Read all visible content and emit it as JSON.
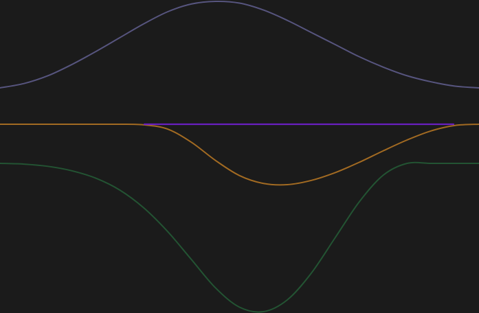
{
  "chart_data": {
    "type": "line",
    "title": "",
    "xlabel": "",
    "ylabel": "",
    "grid": false,
    "legend": "none",
    "background": "#1b1b1b",
    "x": [
      0,
      0.05,
      0.1,
      0.15,
      0.2,
      0.25,
      0.3,
      0.35,
      0.4,
      0.45,
      0.5,
      0.55,
      0.6,
      0.65,
      0.7,
      0.75,
      0.8,
      0.85,
      0.9,
      0.95,
      1.0
    ],
    "series": [
      {
        "color": "#57557f",
        "values": [
          0.0,
          0.05,
          0.14,
          0.27,
          0.42,
          0.58,
          0.74,
          0.88,
          0.97,
          1.0,
          0.98,
          0.9,
          0.78,
          0.64,
          0.5,
          0.36,
          0.24,
          0.14,
          0.07,
          0.02,
          0.0
        ]
      },
      {
        "color": "#6a1fc0",
        "values": [
          0.0,
          0.0,
          0.0,
          0.0,
          0.0,
          0.0,
          0.0,
          0.0,
          0.0,
          0.0,
          0.0,
          0.0,
          0.0,
          0.0,
          0.0,
          0.0,
          0.0,
          0.0,
          0.0,
          0.0,
          0.0
        ]
      },
      {
        "color": "#a36b22",
        "values": [
          0.0,
          0.0,
          0.0,
          0.0,
          0.0,
          0.0,
          -0.01,
          -0.08,
          -0.3,
          -0.6,
          -0.85,
          -0.98,
          -1.0,
          -0.93,
          -0.8,
          -0.63,
          -0.44,
          -0.26,
          -0.11,
          -0.02,
          0.0
        ]
      },
      {
        "color": "#235433",
        "values": [
          0.0,
          -0.005,
          -0.02,
          -0.05,
          -0.1,
          -0.18,
          -0.3,
          -0.46,
          -0.65,
          -0.84,
          -0.97,
          -1.0,
          -0.92,
          -0.74,
          -0.5,
          -0.26,
          -0.08,
          0.0,
          0.0,
          0.0,
          0.0
        ]
      }
    ]
  }
}
